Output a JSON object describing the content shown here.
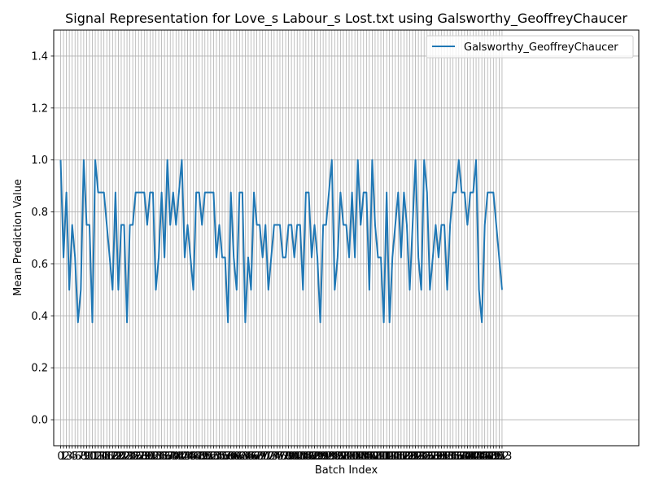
{
  "chart_data": {
    "type": "line",
    "title": "Signal Representation for Love_s Labour_s Lost.txt using Galsworthy_GeoffreyChaucer",
    "xlabel": "Batch Index",
    "ylabel": "Mean Prediction Value",
    "xlim": [
      -2.4,
      200.4
    ],
    "ylim": [
      -0.1,
      1.5
    ],
    "y_ticks": [
      0.0,
      0.2,
      0.4,
      0.6,
      0.8,
      1.0,
      1.2,
      1.4
    ],
    "grid": true,
    "legend_position": "top-right",
    "color": "#1f77b4",
    "series": [
      {
        "name": "Galsworthy_GeoffreyChaucer",
        "values": [
          1.0,
          0.625,
          0.875,
          0.5,
          0.75,
          0.625,
          0.375,
          0.5,
          1.0,
          0.75,
          0.75,
          0.375,
          1.0,
          0.875,
          0.875,
          0.875,
          0.75,
          0.625,
          0.5,
          0.875,
          0.5,
          0.75,
          0.75,
          0.375,
          0.75,
          0.75,
          0.875,
          0.875,
          0.875,
          0.875,
          0.75,
          0.875,
          0.875,
          0.5,
          0.625,
          0.875,
          0.625,
          1.0,
          0.75,
          0.875,
          0.75,
          0.875,
          1.0,
          0.625,
          0.75,
          0.625,
          0.5,
          0.875,
          0.875,
          0.75,
          0.875,
          0.875,
          0.875,
          0.875,
          0.625,
          0.75,
          0.625,
          0.625,
          0.375,
          0.875,
          0.625,
          0.5,
          0.875,
          0.875,
          0.375,
          0.625,
          0.5,
          0.875,
          0.75,
          0.75,
          0.625,
          0.75,
          0.5,
          0.625,
          0.75,
          0.75,
          0.75,
          0.625,
          0.625,
          0.75,
          0.75,
          0.625,
          0.75,
          0.75,
          0.5,
          0.875,
          0.875,
          0.625,
          0.75,
          0.625,
          0.375,
          0.75,
          0.75,
          0.875,
          1.0,
          0.5,
          0.625,
          0.875,
          0.75,
          0.75,
          0.625,
          0.875,
          0.625,
          1.0,
          0.75,
          0.875,
          0.875,
          0.5,
          1.0,
          0.75,
          0.625,
          0.625,
          0.375,
          0.875,
          0.375,
          0.625,
          0.75,
          0.875,
          0.625,
          0.875,
          0.75,
          0.5,
          0.75,
          1.0,
          0.625,
          0.5,
          1.0,
          0.875,
          0.5,
          0.625,
          0.75,
          0.625,
          0.75,
          0.75,
          0.5,
          0.75,
          0.875,
          0.875,
          1.0,
          0.875,
          0.875,
          0.75,
          0.875,
          0.875,
          1.0,
          0.5,
          0.375,
          0.75,
          0.875,
          0.875,
          0.875,
          0.75,
          0.625,
          0.5
        ]
      }
    ]
  }
}
